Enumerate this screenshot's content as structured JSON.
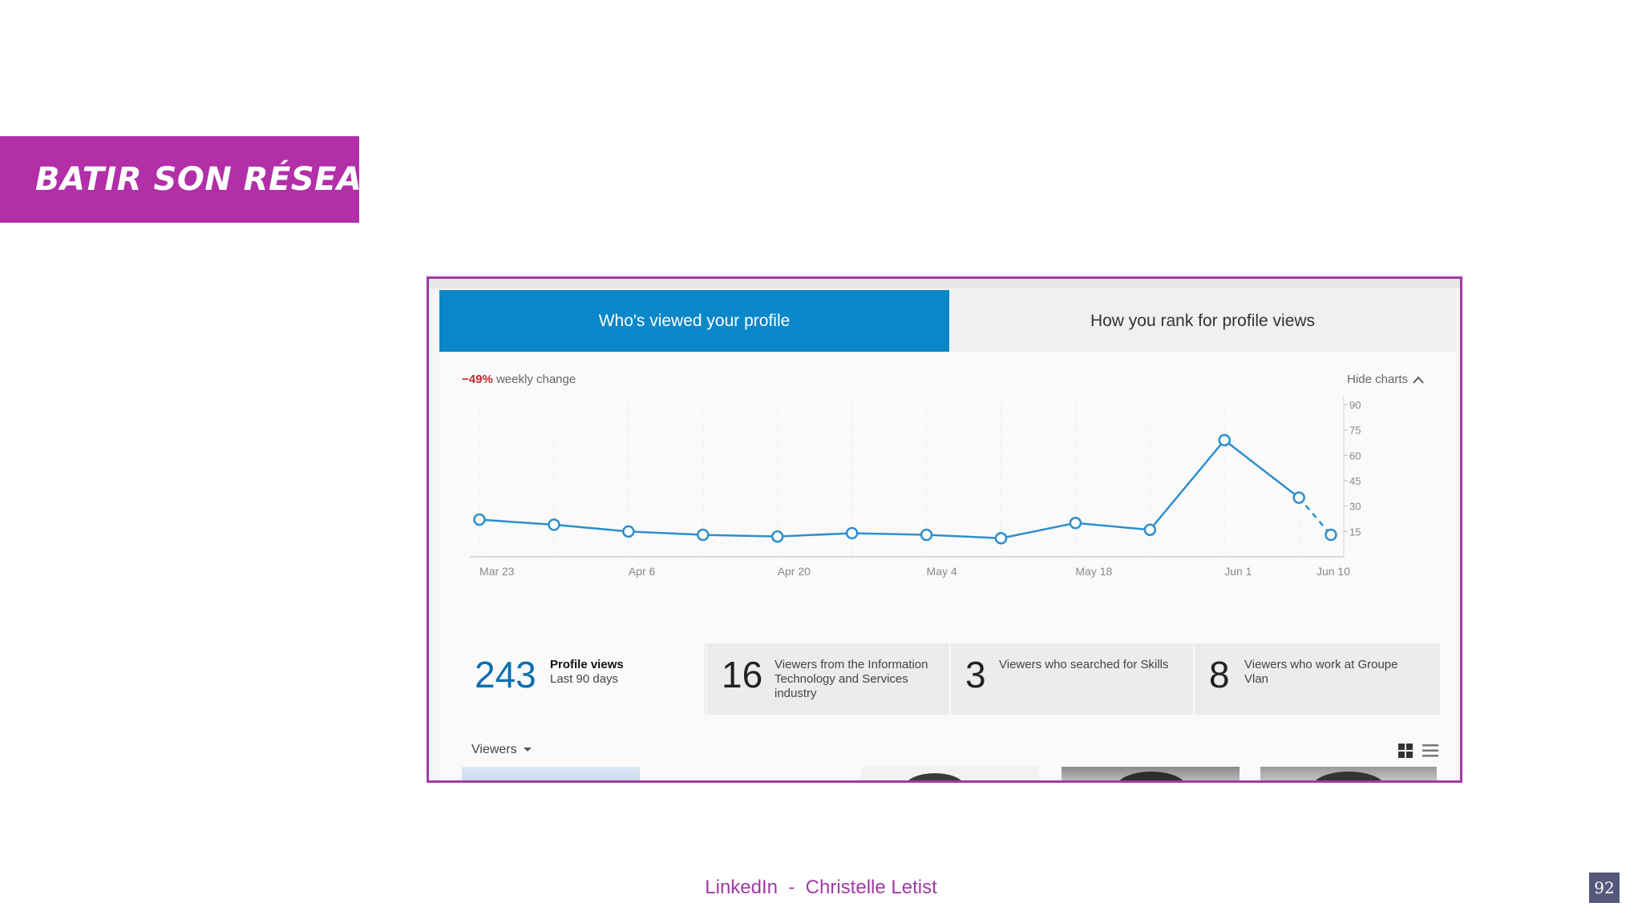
{
  "slide": {
    "title": "BATIR SON RÉSEAU",
    "footer": "LinkedIn  -  Christelle Letist",
    "page_number": "92"
  },
  "tabs": {
    "active": "Who's viewed your profile",
    "inactive": "How you rank for profile views"
  },
  "chart_header": {
    "change_value": "−49%",
    "change_label": " weekly change",
    "hide_label": "Hide charts"
  },
  "chart_data": {
    "type": "line",
    "title": "",
    "xlabel": "",
    "ylabel": "",
    "ylim": [
      0,
      90
    ],
    "y_ticks": [
      15,
      30,
      45,
      60,
      75,
      90
    ],
    "x_tick_labels": [
      "Mar 23",
      "Apr 6",
      "Apr 20",
      "May 4",
      "May 18",
      "Jun 1",
      "Jun 10"
    ],
    "x_tick_days": [
      0,
      14,
      28,
      42,
      56,
      70,
      79
    ],
    "points": [
      {
        "day": 0,
        "value": 22
      },
      {
        "day": 7,
        "value": 19
      },
      {
        "day": 14,
        "value": 15
      },
      {
        "day": 21,
        "value": 13
      },
      {
        "day": 28,
        "value": 12
      },
      {
        "day": 35,
        "value": 14
      },
      {
        "day": 42,
        "value": 13
      },
      {
        "day": 49,
        "value": 11
      },
      {
        "day": 56,
        "value": 20
      },
      {
        "day": 63,
        "value": 16
      },
      {
        "day": 70,
        "value": 69
      },
      {
        "day": 77,
        "value": 35
      },
      {
        "day": 80,
        "value": 13
      }
    ],
    "dashed_last_segment": true,
    "line_color": "#2e8fcc"
  },
  "stats": [
    {
      "number": "243",
      "label_bold": "Profile views",
      "label": "Last 90 days"
    },
    {
      "number": "16",
      "label": "Viewers from the Information Technology and Services industry"
    },
    {
      "number": "3",
      "label": "Viewers who searched for Skills"
    },
    {
      "number": "8",
      "label": "Viewers who work at Groupe Vlan"
    }
  ],
  "viewers": {
    "label": "Viewers",
    "grid_icon": "grid-view-icon",
    "list_icon": "list-view-icon"
  }
}
